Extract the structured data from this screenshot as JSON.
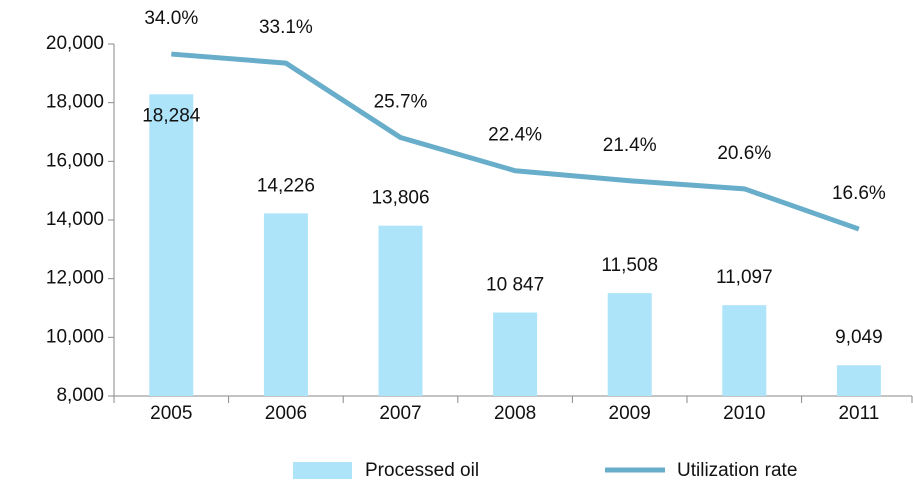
{
  "chart_data": {
    "type": "bar-line",
    "categories": [
      "2005",
      "2006",
      "2007",
      "2008",
      "2009",
      "2010",
      "2011"
    ],
    "series": [
      {
        "name": "Processed oil",
        "type": "bar",
        "color": "#aee4fa",
        "values": [
          18284,
          14226,
          13806,
          10847,
          11508,
          11097,
          9049
        ],
        "value_labels": [
          "18,284",
          "14,226",
          "13,806",
          "10 847",
          "11,508",
          "11,097",
          "9,049"
        ]
      },
      {
        "name": "Utilization rate",
        "type": "line",
        "color": "#68adca",
        "axis": "y2",
        "values": [
          34.0,
          33.1,
          25.7,
          22.4,
          21.4,
          20.6,
          16.6
        ],
        "value_labels": [
          "34.0%",
          "33.1%",
          "25.7%",
          "22.4%",
          "21.4%",
          "20.6%",
          "16.6%"
        ]
      }
    ],
    "ylim": [
      8000,
      20000
    ],
    "yticks": [
      {
        "value": 8000,
        "label": "8,000"
      },
      {
        "value": 10000,
        "label": "10,000"
      },
      {
        "value": 12000,
        "label": "12,000"
      },
      {
        "value": 14000,
        "label": "14,000"
      },
      {
        "value": 16000,
        "label": "16,000"
      },
      {
        "value": 18000,
        "label": "18,000"
      },
      {
        "value": 20000,
        "label": "20,000"
      }
    ],
    "y2lim": [
      0,
      35
    ],
    "legend": "bottom"
  }
}
